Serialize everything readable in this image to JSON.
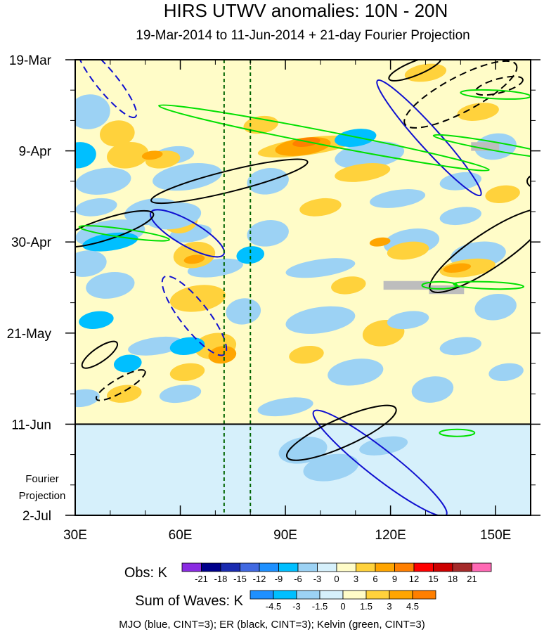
{
  "chart_data": {
    "type": "heatmap",
    "title": "HIRS UTWV anomalies: 10N - 20N",
    "subtitle": "19-Mar-2014 to 11-Jun-2014 + 21-day Fourier Projection",
    "x_axis": {
      "range": [
        30,
        160
      ],
      "ticks": [
        {
          "value": 30,
          "label": "30E"
        },
        {
          "value": 60,
          "label": "60E"
        },
        {
          "value": 90,
          "label": "90E"
        },
        {
          "value": 120,
          "label": "120E"
        },
        {
          "value": 150,
          "label": "150E"
        }
      ]
    },
    "y_axis": {
      "range_days": [
        0,
        105
      ],
      "ticks": [
        {
          "value": 0,
          "label": "19-Mar"
        },
        {
          "value": 21,
          "label": "9-Apr"
        },
        {
          "value": 42,
          "label": "30-Apr"
        },
        {
          "value": 63,
          "label": "21-May"
        },
        {
          "value": 84,
          "label": "11-Jun"
        },
        {
          "value": 105,
          "label": "2-Jul"
        }
      ],
      "projection_label_1": "Fourier",
      "projection_label_2": "Projection"
    },
    "observation_end_day": 84,
    "reference_lines_lon": [
      72.5,
      80
    ],
    "legend_obs": {
      "title": "Obs: K",
      "levels": [
        "-21",
        "-18",
        "-15",
        "-12",
        "-9",
        "-6",
        "-3",
        "0",
        "3",
        "6",
        "9",
        "12",
        "15",
        "18",
        "21"
      ],
      "colors": [
        "#8a2be2",
        "#00008b",
        "#1a2bb0",
        "#4169e1",
        "#1e90ff",
        "#00bfff",
        "#9cd2f4",
        "#d6f0fb",
        "#fffcc8",
        "#ffd23c",
        "#ffa500",
        "#ff7f00",
        "#ff0000",
        "#cd0000",
        "#a52a2a",
        "#ff69b4"
      ]
    },
    "legend_waves": {
      "title": "Sum of Waves: K",
      "levels": [
        "-4.5",
        "-3",
        "-1.5",
        "0",
        "1.5",
        "3",
        "4.5"
      ],
      "colors": [
        "#1e90ff",
        "#00bfff",
        "#9cd2f4",
        "#d6f0fb",
        "#fffcc8",
        "#ffd23c",
        "#ffa500",
        "#ff7f00"
      ]
    },
    "wave_contours": "MJO (blue, CINT=3); ER (black, CINT=3); Kelvin (green, CINT=3)",
    "mjo_color": "#1010d0",
    "er_color": "#000000",
    "kelvin_color": "#00e000",
    "missing_color": "#bdbdbd"
  }
}
